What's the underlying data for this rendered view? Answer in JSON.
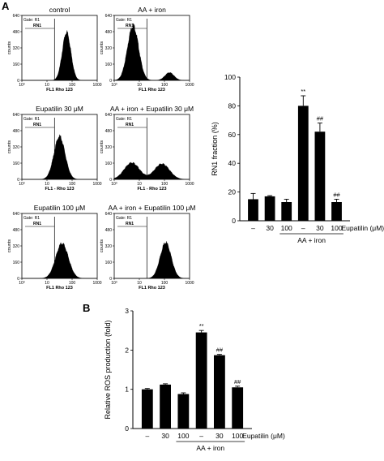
{
  "panels": {
    "a": "A",
    "b": "B"
  },
  "histograms": [
    {
      "title": "control",
      "gate": "Gate: R1",
      "region": "RN1",
      "xlabel": "FL1 Rho 123",
      "ylabel": "counts",
      "peaks": [
        {
          "mu": 1.78,
          "sd": 0.17,
          "h": 0.74
        }
      ]
    },
    {
      "title": "AA + iron",
      "gate": "Gate: R1",
      "region": "RN1",
      "xlabel": "FL1 Rho 123",
      "ylabel": "counts",
      "peaks": [
        {
          "mu": 0.75,
          "sd": 0.22,
          "h": 0.85
        },
        {
          "mu": 2.2,
          "sd": 0.18,
          "h": 0.12
        }
      ]
    },
    {
      "title": "Eupatilin 30 μM",
      "gate": "Gate: R1",
      "region": "RN1",
      "xlabel": "FL1 - Rho 123",
      "ylabel": "counts",
      "peaks": [
        {
          "mu": 1.5,
          "sd": 0.22,
          "h": 0.66
        }
      ]
    },
    {
      "title": "AA + iron + Eupatilin 30 μM",
      "gate": "Gate: R1",
      "region": "RN1",
      "xlabel": "FL1 - Rho 123",
      "ylabel": "counts",
      "peaks": [
        {
          "mu": 0.7,
          "sd": 0.3,
          "h": 0.26
        },
        {
          "mu": 1.9,
          "sd": 0.3,
          "h": 0.24
        }
      ]
    },
    {
      "title": "Eupatilin 100 μM",
      "gate": "Gate: R1",
      "region": "RN1",
      "xlabel": "FL1 Rho 123",
      "ylabel": "counts",
      "peaks": [
        {
          "mu": 1.6,
          "sd": 0.25,
          "h": 0.54
        }
      ]
    },
    {
      "title": "AA + iron + Eupatilin 100 μM",
      "gate": "Gate: R1",
      "region": "RN1",
      "xlabel": "FL1 Rho 123",
      "ylabel": "counts",
      "peaks": [
        {
          "mu": 2.05,
          "sd": 0.22,
          "h": 0.55
        }
      ]
    }
  ],
  "hist_axes": {
    "yticks": [
      "0",
      "160",
      "320",
      "480",
      "640"
    ],
    "xticks": [
      "1",
      "10",
      "100",
      "1000"
    ],
    "x_first_tick": "10⁰"
  },
  "chart_data": [
    {
      "type": "bar",
      "ylabel": "RN1 fraction (%)",
      "ylim": [
        0,
        100
      ],
      "yticks": [
        0,
        20,
        40,
        60,
        80,
        100
      ],
      "categories": [
        "–",
        "30",
        "100",
        "–",
        "30",
        "100"
      ],
      "values": [
        15,
        17,
        13,
        80,
        62,
        13
      ],
      "errors": [
        4,
        0.5,
        2,
        7,
        6,
        2
      ],
      "colors": [
        "#000000",
        "#000000",
        "#000000",
        "#000000",
        "#000000",
        "#000000"
      ],
      "annotations": [
        "",
        "",
        "",
        "**",
        "##",
        "##"
      ],
      "treatment_label": "Eupatilin (μM)",
      "group_label": "AA + iron"
    },
    {
      "type": "bar",
      "ylabel": "Relative ROS production (fold)",
      "ylim": [
        0,
        3
      ],
      "yticks": [
        0,
        1,
        2,
        3
      ],
      "categories": [
        "–",
        "30",
        "100",
        "–",
        "30",
        "100"
      ],
      "values": [
        1.0,
        1.12,
        0.88,
        2.45,
        1.87,
        1.05
      ],
      "errors": [
        0.02,
        0.02,
        0.03,
        0.05,
        0.02,
        0.03
      ],
      "colors": [
        "#000000",
        "#000000",
        "#000000",
        "#000000",
        "#000000",
        "#000000"
      ],
      "annotations": [
        "",
        "",
        "",
        "**",
        "##",
        "##"
      ],
      "treatment_label": "Eupatilin (μM)",
      "group_label": "AA + iron"
    }
  ]
}
